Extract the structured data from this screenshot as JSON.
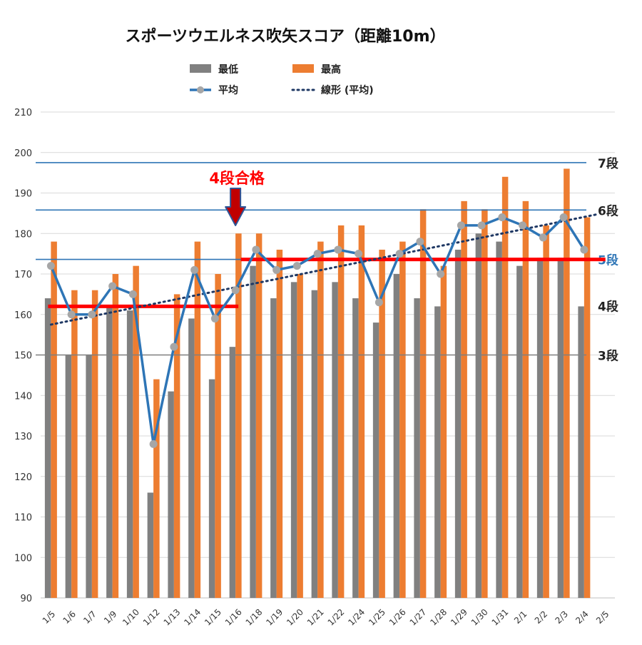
{
  "chart_data": {
    "type": "bar",
    "title": "スポーツウエルネス吹矢スコア（距離10m）",
    "categories": [
      "1/5",
      "1/6",
      "1/7",
      "1/9",
      "1/10",
      "1/12",
      "1/13",
      "1/14",
      "1/15",
      "1/16",
      "1/18",
      "1/19",
      "1/20",
      "1/21",
      "1/22",
      "1/24",
      "1/25",
      "1/26",
      "1/27",
      "1/28",
      "1/29",
      "1/30",
      "1/31",
      "2/1",
      "2/2",
      "2/3",
      "2/4",
      "2/5"
    ],
    "ylim": [
      90,
      210
    ],
    "yticks": [
      "90",
      "100",
      "110",
      "120",
      "130",
      "140",
      "150",
      "160",
      "170",
      "180",
      "190",
      "200",
      "210"
    ],
    "grid": true,
    "legend_position": "top",
    "series": [
      {
        "name": "最低",
        "kind": "bar",
        "color": "#808080",
        "values": [
          164,
          150,
          150,
          162,
          161,
          116,
          141,
          159,
          144,
          152,
          172,
          164,
          168,
          166,
          168,
          164,
          158,
          170,
          164,
          162,
          176,
          180,
          178,
          172,
          174,
          174,
          162,
          null
        ]
      },
      {
        "name": "最高",
        "kind": "bar",
        "color": "#ED7D31",
        "values": [
          178,
          166,
          166,
          170,
          172,
          144,
          165,
          178,
          170,
          180,
          180,
          176,
          170,
          178,
          182,
          182,
          176,
          178,
          186,
          172,
          188,
          186,
          194,
          188,
          182,
          196,
          184,
          null
        ]
      },
      {
        "name": "平均",
        "kind": "line",
        "color": "#2E75B6",
        "values": [
          172,
          160,
          160,
          167,
          165,
          128,
          152,
          171,
          159,
          166,
          176,
          171,
          172,
          175,
          176,
          175,
          163,
          175,
          178,
          170,
          182,
          182,
          184,
          182,
          179,
          184,
          176,
          null
        ]
      }
    ],
    "trendline": {
      "name": "線形 (平均)",
      "color": "#1F3864",
      "from": [
        0,
        157.5
      ],
      "to": [
        26.7,
        184.8
      ]
    },
    "reference_lines": [
      {
        "value": 197.5,
        "label": "7段",
        "color": "#2E75B6",
        "label_color": "#222222"
      },
      {
        "value": 185.8,
        "label": "6段",
        "color": "#2E75B6",
        "label_color": "#222222"
      },
      {
        "value": 173.6,
        "label": "5段",
        "color": "#2E75B6",
        "label_color": "#2E75B6"
      },
      {
        "value": 162.2,
        "label": "4段",
        "color": null,
        "label_color": "#222222"
      },
      {
        "value": 150,
        "label": "3段",
        "color": "#7F7F7F",
        "label_color": "#222222"
      }
    ],
    "level_segments": [
      {
        "value": 162,
        "from": 0,
        "to": 9,
        "color": "#FF0000"
      },
      {
        "value": 173.6,
        "from": 9.4,
        "to": 26.9,
        "color": "#FF0000"
      }
    ],
    "annotation": {
      "text": "4段合格",
      "at_category": 9,
      "color": "#FF0000",
      "arrow_fill": "#C00000",
      "arrow_stroke": "#2F5597"
    }
  }
}
